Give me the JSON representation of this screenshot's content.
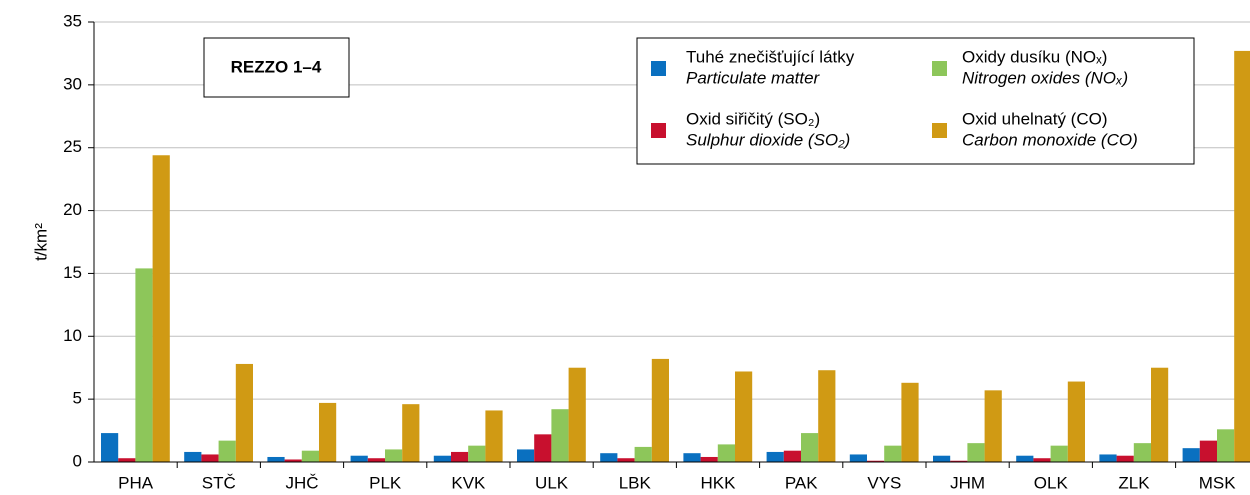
{
  "chart_data": {
    "type": "bar",
    "annotation": "REZZO 1–4",
    "ylabel": "t/km²",
    "categories": [
      "PHA",
      "STČ",
      "JHČ",
      "PLK",
      "KVK",
      "ULK",
      "LBK",
      "HKK",
      "PAK",
      "VYS",
      "JHM",
      "OLK",
      "ZLK",
      "MSK"
    ],
    "series": [
      {
        "name": "Tuhé znečišťující látky",
        "name_en": "Particulate matter",
        "color": "#0a70c0",
        "values": [
          2.3,
          0.8,
          0.4,
          0.5,
          0.5,
          1.0,
          0.7,
          0.7,
          0.8,
          0.6,
          0.5,
          0.5,
          0.6,
          1.1
        ]
      },
      {
        "name": "Oxid siřičitý (SO₂)",
        "name_en": "Sulphur dioxide (SO₂)",
        "color": "#c8102e",
        "values": [
          0.3,
          0.6,
          0.2,
          0.3,
          0.8,
          2.2,
          0.3,
          0.4,
          0.9,
          0.1,
          0.1,
          0.3,
          0.5,
          1.7
        ]
      },
      {
        "name": "Oxidy dusíku (NOₓ)",
        "name_en": "Nitrogen oxides (NOₓ)",
        "color": "#8dc65a",
        "values": [
          15.4,
          1.7,
          0.9,
          1.0,
          1.3,
          4.2,
          1.2,
          1.4,
          2.3,
          1.3,
          1.5,
          1.3,
          1.5,
          2.6
        ]
      },
      {
        "name": "Oxid uhelnatý (CO)",
        "name_en": "Carbon monoxide (CO)",
        "color": "#d09a14",
        "values": [
          24.4,
          7.8,
          4.7,
          4.6,
          4.1,
          7.5,
          8.2,
          7.2,
          7.3,
          6.3,
          5.7,
          6.4,
          7.5,
          32.7
        ]
      }
    ],
    "ylim": [
      0,
      35
    ],
    "yticks": [
      0,
      5,
      10,
      15,
      20,
      25,
      30,
      35
    ],
    "grid": true
  }
}
